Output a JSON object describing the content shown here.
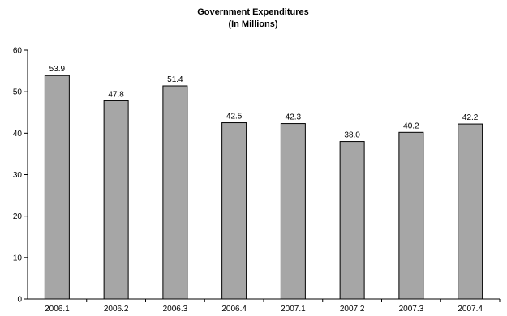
{
  "chart_data": {
    "type": "bar",
    "title": "Government Expenditures",
    "subtitle": "(In Millions)",
    "xlabel": "",
    "ylabel": "",
    "categories": [
      "2006.1",
      "2006.2",
      "2006.3",
      "2006.4",
      "2007.1",
      "2007.2",
      "2007.3",
      "2007.4"
    ],
    "values": [
      53.9,
      47.8,
      51.4,
      42.5,
      42.3,
      38.0,
      40.2,
      42.2
    ],
    "value_labels": [
      "53.9",
      "47.8",
      "51.4",
      "42.5",
      "42.3",
      "38.0",
      "40.2",
      "42.2"
    ],
    "ylim": [
      0,
      60
    ],
    "yticks": [
      "0",
      "10",
      "20",
      "30",
      "40",
      "50",
      "60"
    ],
    "grid": false,
    "legend": "none",
    "bar_color": "#a6a6a6",
    "bar_edge_color": "#000000"
  }
}
